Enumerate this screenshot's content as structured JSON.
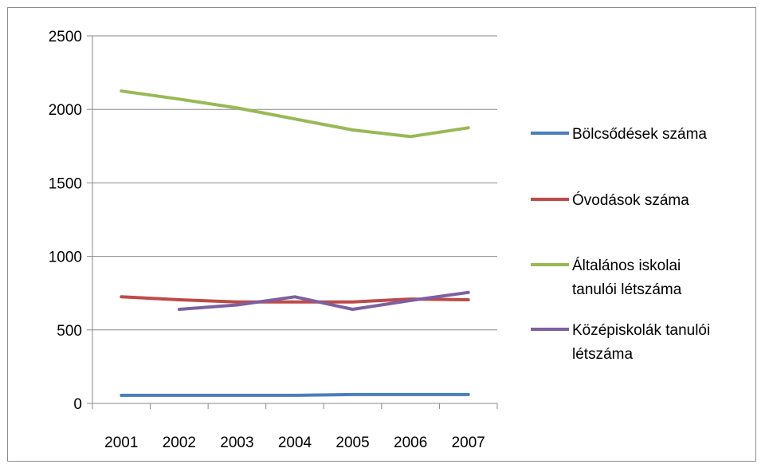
{
  "chart_data": {
    "type": "line",
    "title": "",
    "xlabel": "",
    "ylabel": "",
    "categories": [
      "2001",
      "2002",
      "2003",
      "2004",
      "2005",
      "2006",
      "2007"
    ],
    "ylim": [
      0,
      2500
    ],
    "yticks": [
      "0",
      "500",
      "1000",
      "1500",
      "2000",
      "2500"
    ],
    "grid": true,
    "legend_position": "right",
    "series": [
      {
        "name": "Bölcsődések száma",
        "color": "#4a7ebb",
        "values": [
          55,
          55,
          55,
          55,
          60,
          60,
          60
        ]
      },
      {
        "name": "Óvodások száma",
        "color": "#be4b48",
        "values": [
          725,
          705,
          690,
          690,
          690,
          710,
          705
        ]
      },
      {
        "name": "Általános iskolai tanulói létszáma",
        "legend_lines": [
          "Általános iskolai",
          "tanulói létszáma"
        ],
        "color": "#98b954",
        "values": [
          2125,
          2070,
          2010,
          1935,
          1860,
          1815,
          1875
        ]
      },
      {
        "name": "Középiskolák tanulói létszáma",
        "legend_lines": [
          "Középiskolák tanulói",
          "létszáma"
        ],
        "color": "#7d60a0",
        "values": [
          null,
          640,
          670,
          725,
          640,
          700,
          755
        ]
      }
    ]
  }
}
